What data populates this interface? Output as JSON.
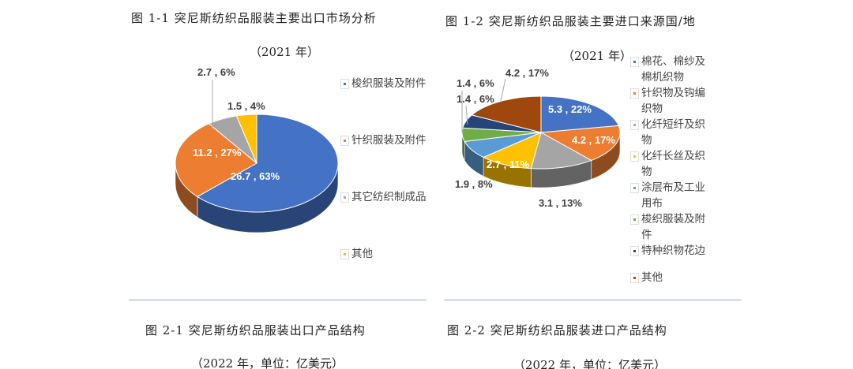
{
  "chart_data": [
    {
      "type": "pie",
      "title": "图 1-1 突尼斯纺织品服装主要出口市场分析",
      "subtitle": "（2021 年）",
      "legend_position": "right",
      "categories": [
        "梭织服装及附件",
        "针织服装及附件",
        "其它纺织制成品",
        "其他"
      ],
      "values": [
        26.7,
        11.2,
        2.7,
        1.5
      ],
      "percents": [
        63,
        27,
        6,
        4
      ],
      "labels": [
        "26.7 , 63%",
        "11.2 , 27%",
        "2.7 , 6%",
        "1.5 , 4%"
      ],
      "colors": [
        "#4472c4",
        "#ed7d31",
        "#a5a5a5",
        "#ffc000"
      ]
    },
    {
      "type": "pie",
      "title": "图 1-2 突尼斯纺织品服装主要进口来源国/地",
      "subtitle": "（2021 年）",
      "legend_position": "right",
      "categories": [
        "棉花、棉纱及棉机织物",
        "针织物及钩编织物",
        "化纤短纤及织物",
        "化纤长丝及织物",
        "涂层布及工业用布",
        "梭织服装及附件",
        "特种织物花边",
        "其他"
      ],
      "values": [
        5.3,
        4.2,
        3.1,
        2.7,
        1.9,
        1.4,
        1.4,
        4.2
      ],
      "percents": [
        22,
        17,
        13,
        11,
        8,
        6,
        6,
        17
      ],
      "labels": [
        "5.3 , 22%",
        "4.2 , 17%",
        "3.1 , 13%",
        "2.7 , 11%",
        "1.9 , 8%",
        "1.4 , 6%",
        "1.4 , 6%",
        "4.2 , 17%"
      ],
      "colors": [
        "#4472c4",
        "#ed7d31",
        "#a5a5a5",
        "#ffc000",
        "#5b9bd5",
        "#70ad47",
        "#264478",
        "#9e480e"
      ]
    }
  ],
  "captions": {
    "left_title": "图 2-1 突尼斯纺织品服装出口产品结构",
    "left_sub": "（2022 年，单位：亿美元）",
    "right_title": "图 2-2 突尼斯纺织品服装进口产品结构",
    "right_sub": "（2022 年，单位：亿美元）"
  }
}
